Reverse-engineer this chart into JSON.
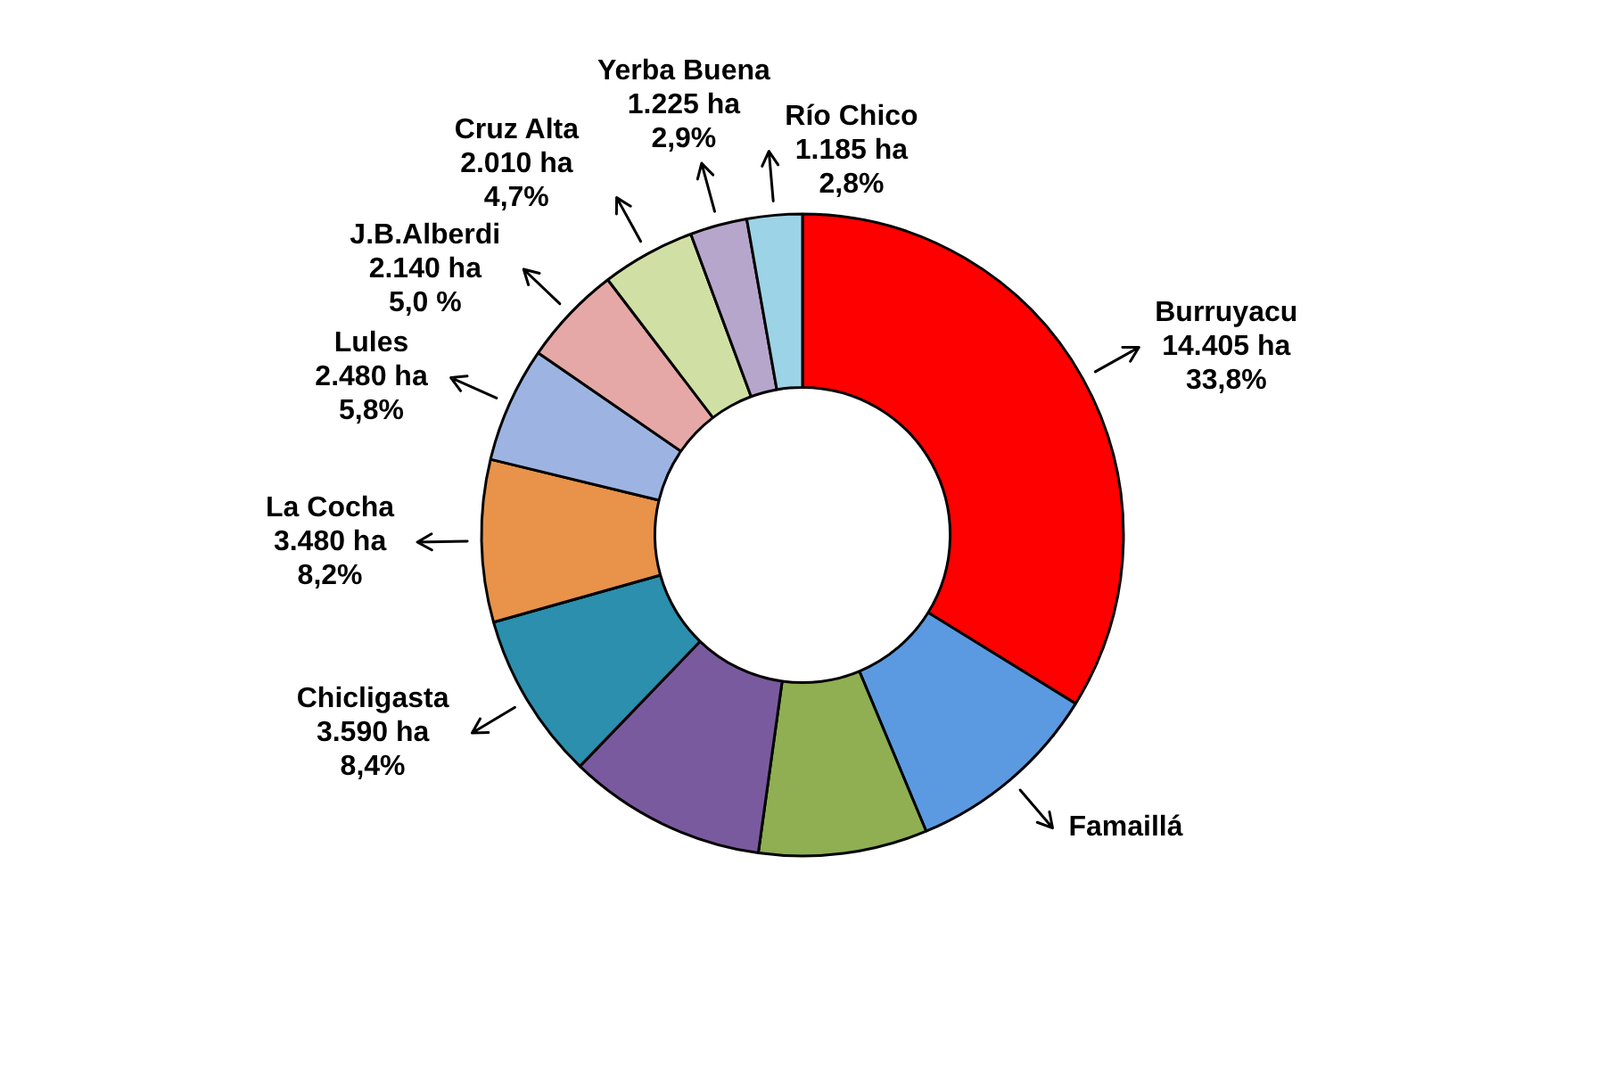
{
  "chart_data": {
    "type": "donut",
    "categories": [
      "Burruyacu",
      "Famaillá",
      null,
      null,
      "Chicligasta",
      "La Cocha",
      "Lules",
      "J.B.Alberdi",
      "Cruz Alta",
      "Yerba Buena",
      "Río Chico"
    ],
    "values": [
      14405,
      4220,
      3620,
      4260,
      3590,
      3480,
      2480,
      2140,
      2010,
      1225,
      1185
    ],
    "colors": [
      "#ff0000",
      "#5b9ae0",
      "#8faf52",
      "#7a5a9e",
      "#2b8fad",
      "#e8924a",
      "#9db4e2",
      "#e5a8a6",
      "#d0e0a5",
      "#b7a6cc",
      "#9dd3e6"
    ],
    "value_labels": [
      "14.405 ha\n33,8%",
      null,
      null,
      null,
      "3.590 ha\n8,4%",
      "3.480 ha\n8,2%",
      "2.480 ha\n5,8%",
      "2.140 ha\n5,0 %",
      "2.010 ha\n4,7%",
      "1.225 ha\n2,9%",
      "1.185 ha\n2,8%"
    ]
  }
}
